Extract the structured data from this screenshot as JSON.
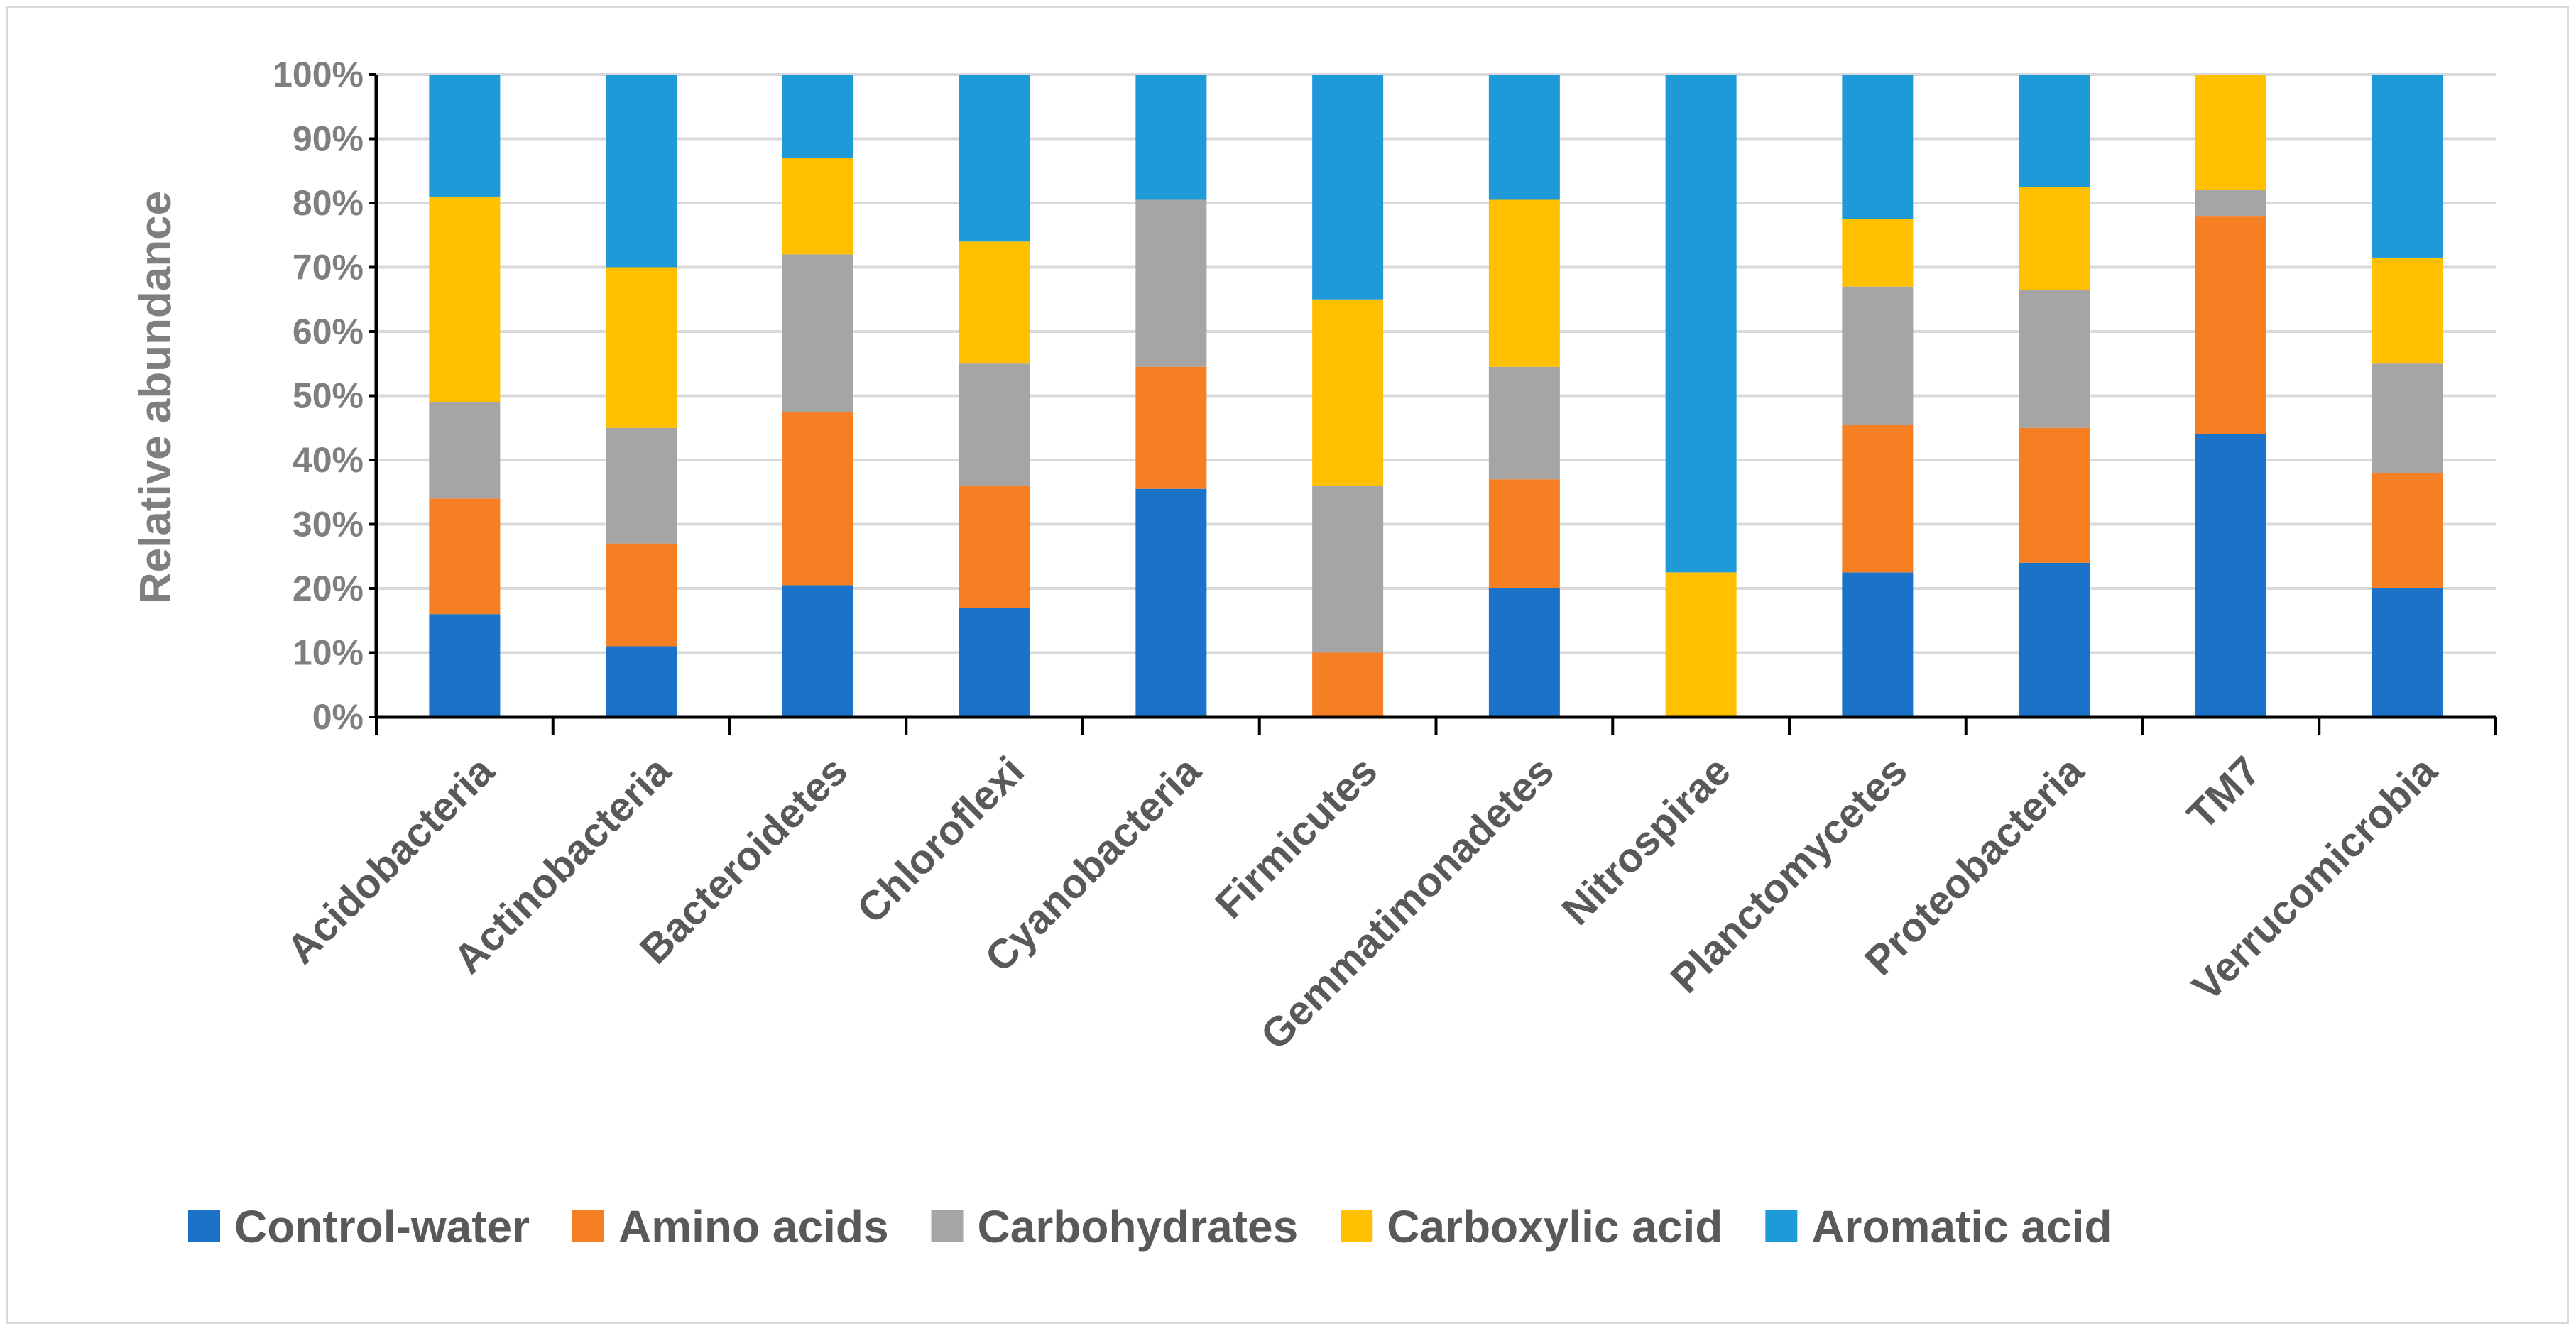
{
  "chart_data": {
    "type": "bar",
    "stacked": true,
    "percent_stacked": true,
    "title": "",
    "xlabel": "",
    "ylabel": "Relative abundance",
    "ylim": [
      0,
      100
    ],
    "y_ticks": [
      "0%",
      "10%",
      "20%",
      "30%",
      "40%",
      "50%",
      "60%",
      "70%",
      "80%",
      "90%",
      "100%"
    ],
    "grid": true,
    "legend_position": "bottom",
    "categories": [
      "Acidobacteria",
      "Actinobacteria",
      "Bacteroidetes",
      "Chloroflexi",
      "Cyanobacteria",
      "Firmicutes",
      "Gemmatimonadetes",
      "Nitrospirae",
      "Planctomycetes",
      "Proteobacteria",
      "TM7",
      "Verrucomicrobia"
    ],
    "series": [
      {
        "name": "Control-water",
        "color": "#1a73c8",
        "values": [
          16,
          11,
          20.5,
          17,
          35.5,
          0,
          20,
          0,
          22.5,
          24,
          44,
          20
        ]
      },
      {
        "name": "Amino acids",
        "color": "#f77f23",
        "values": [
          18,
          16,
          27,
          19,
          19,
          10,
          17,
          0,
          23,
          21,
          34,
          18
        ]
      },
      {
        "name": "Carbohydrates",
        "color": "#a5a5a5",
        "values": [
          15,
          18,
          24.5,
          19,
          26,
          26,
          17.5,
          0,
          21.5,
          21.5,
          4,
          17
        ]
      },
      {
        "name": "Carboxylic acid",
        "color": "#ffc000",
        "values": [
          32,
          25,
          15,
          19,
          0,
          29,
          26,
          22.5,
          10.5,
          16,
          18,
          16.5
        ]
      },
      {
        "name": "Aromatic acid",
        "color": "#1e9ad9",
        "values": [
          19,
          30,
          13,
          26,
          19.5,
          35,
          19.5,
          77.5,
          22.5,
          17.5,
          0,
          28.5
        ]
      }
    ]
  }
}
